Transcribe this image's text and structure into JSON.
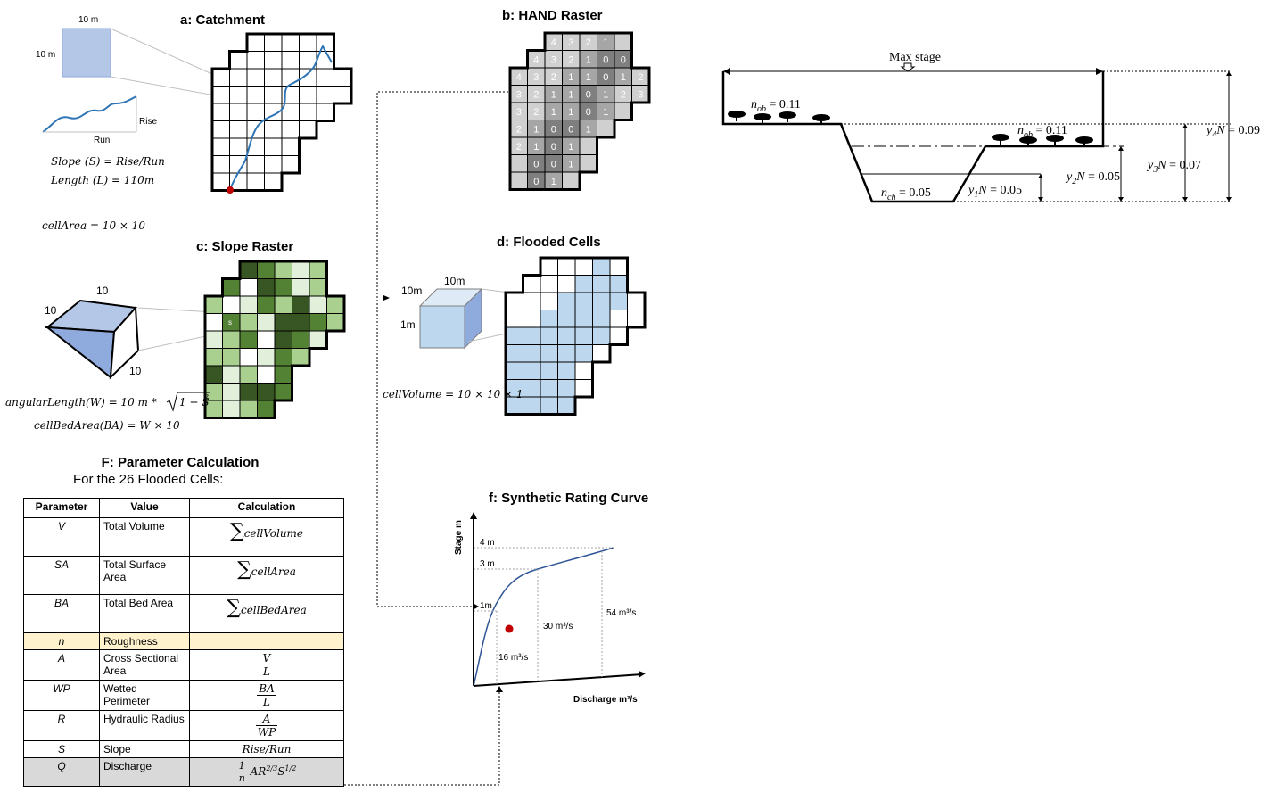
{
  "panel_a": {
    "title": "a: Catchment",
    "dim_top": "10 m",
    "dim_left": "10 m",
    "rise": "Rise",
    "run": "Run",
    "slope_eq": "Slope (S) = Rise/Run",
    "length_eq": "Length (L) = 110m",
    "cellarea_eq": "cellArea = 10 × 10"
  },
  "panel_b": {
    "title": "b: HAND Raster",
    "rows": [
      [
        "",
        "",
        "4",
        "3",
        "2",
        "1",
        "",
        ""
      ],
      [
        "",
        "4",
        "3",
        "2",
        "1",
        "0",
        "0",
        ""
      ],
      [
        "4",
        "3",
        "2",
        "1",
        "1",
        "0",
        "1",
        "2"
      ],
      [
        "3",
        "2",
        "1",
        "1",
        "0",
        "1",
        "2",
        "3"
      ],
      [
        "3",
        "2",
        "1",
        "1",
        "0",
        "1",
        "",
        ""
      ],
      [
        "2",
        "1",
        "0",
        "0",
        "1",
        "",
        "",
        ""
      ],
      [
        "2",
        "1",
        "0",
        "1",
        "",
        "",
        "",
        ""
      ],
      [
        "",
        "0",
        "0",
        "1",
        "",
        "",
        "",
        ""
      ],
      [
        "",
        "0",
        "1",
        "",
        "",
        "",
        "",
        ""
      ]
    ]
  },
  "panel_c": {
    "title": "c: Slope Raster",
    "cube_top": "10",
    "cube_left": "10",
    "cube_right": "10",
    "cell_mark": "s",
    "angular_eq_a": "angularLength(W) = 10 m  *",
    "angular_eq_b": "1 + S",
    "angular_eq_sup": "2",
    "bed_eq": "cellBedArea(BA) = W × 10"
  },
  "panel_d": {
    "title": "d: Flooded Cells",
    "cube_top": "10m",
    "cube_left_top": "10m",
    "cube_left": "1m",
    "volume_eq": "cellVolume = 10 × 10 × 1"
  },
  "panel_f": {
    "title": "f: Synthetic Rating Curve",
    "ylabel": "Stage m",
    "xlabel": "Discharge m³/s",
    "stage_labels": [
      "4 m",
      "3 m",
      "1m"
    ],
    "flow_labels": [
      "16 m³/s",
      "30 m³/s",
      "54 m³/s"
    ]
  },
  "panel_cs": {
    "max_stage": "Max stage",
    "n_ob_left": "n_ob = 0.11",
    "n_ob_right": "n_ob = 0.11",
    "n_ch": "n_ch = 0.05",
    "y1": "y₁N = 0.05",
    "y2": "y₂N = 0.05",
    "y3": "y₃N = 0.07",
    "y4": "y₄N = 0.09"
  },
  "panel_F": {
    "title": "F: Parameter Calculation",
    "subtitle": "For the 26 Flooded Cells:",
    "headers": [
      "Parameter",
      "Value",
      "Calculation"
    ],
    "rows": [
      {
        "sym": "V",
        "value": "Total Volume",
        "calc": "∑ cellVolume"
      },
      {
        "sym": "SA",
        "value": "Total Surface Area",
        "calc": "∑ cellArea"
      },
      {
        "sym": "BA",
        "value": "Total Bed Area",
        "calc": "∑ cellBedArea"
      },
      {
        "sym": "n",
        "value": "Roughness",
        "calc": ""
      },
      {
        "sym": "A",
        "value": "Cross Sectional Area",
        "calc_num": "V",
        "calc_den": "L"
      },
      {
        "sym": "WP",
        "value": "Wetted Perimeter",
        "calc_num": "BA",
        "calc_den": "L"
      },
      {
        "sym": "R",
        "value": "Hydraulic Radius",
        "calc_num": "A",
        "calc_den": "WP"
      },
      {
        "sym": "S",
        "value": "Slope",
        "calc": "Rise/Run"
      },
      {
        "sym": "Q",
        "value": "Discharge",
        "calc": "1/n AR^(2/3) S^(1/2)"
      }
    ]
  },
  "colors": {
    "hand_dark": "#7f7f7f",
    "hand_mid": "#a6a6a6",
    "hand_light": "#d0d0d0",
    "slope_dark": "#375623",
    "slope_mid": "#548235",
    "slope_light": "#a9d08e",
    "slope_pale": "#e2efda",
    "flood_blue": "#bdd7ee",
    "river": "#2e75b6",
    "curve": "#2f5597",
    "roughness_row": "#fff2cc",
    "discharge_row": "#d9d9d9",
    "outlet": "#c00000"
  }
}
